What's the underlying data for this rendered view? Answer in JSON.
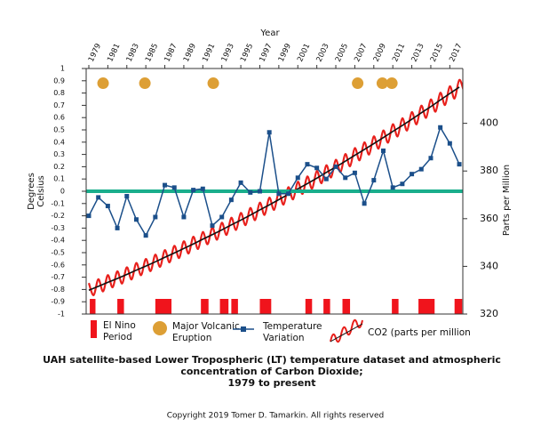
{
  "chart_data": {
    "type": "line",
    "title": [
      "UAH satellite-based Lower Tropospheric (LT) temperature dataset and atmospheric",
      "concentration of Carbon Dioxide;",
      "1979 to present"
    ],
    "xlabel": "Year",
    "ylabel": "Degrees Celsius",
    "y2label": "Parts per Million",
    "copyright": "Copyright 2019 Tomer D. Tamarkin.  All rights reserved",
    "xlim": [
      1978.72,
      2018.37
    ],
    "xticks": [
      1979,
      1981,
      1983,
      1985,
      1987,
      1989,
      1991,
      1993,
      1995,
      1997,
      1999,
      2001,
      2003,
      2005,
      2007,
      2009,
      2011,
      2013,
      2015,
      2017
    ],
    "ylim": [
      -1,
      1
    ],
    "yticks": [
      -1,
      -0.9,
      -0.8,
      -0.7,
      -0.6,
      -0.5,
      -0.4,
      -0.3,
      -0.2,
      -0.1,
      0,
      0.1,
      0.2,
      0.3,
      0.4,
      0.5,
      0.6,
      0.7,
      0.8,
      0.9,
      1
    ],
    "y2lim": [
      320,
      423
    ],
    "y2ticks": [
      320,
      340,
      360,
      380,
      400
    ],
    "reference_line": {
      "value": 0,
      "color": "#1aae8c"
    },
    "series": [
      {
        "name": "Temperature Variation",
        "color": "#1b4f8a",
        "x": [
          1979,
          1980,
          1981,
          1982,
          1983,
          1984,
          1985,
          1986,
          1987,
          1988,
          1989,
          1990,
          1991,
          1992,
          1993,
          1994,
          1995,
          1996,
          1997,
          1998,
          1999,
          2000,
          2001,
          2002,
          2003,
          2004,
          2005,
          2006,
          2007,
          2008,
          2009,
          2010,
          2011,
          2012,
          2013,
          2014,
          2015,
          2016,
          2017,
          2018
        ],
        "values": [
          -0.2,
          -0.05,
          -0.12,
          -0.3,
          -0.04,
          -0.23,
          -0.36,
          -0.21,
          0.05,
          0.03,
          -0.21,
          0.01,
          0.02,
          -0.28,
          -0.21,
          -0.07,
          0.07,
          -0.01,
          0.0,
          0.48,
          -0.02,
          -0.02,
          0.11,
          0.22,
          0.19,
          0.1,
          0.2,
          0.11,
          0.15,
          -0.1,
          0.09,
          0.33,
          0.03,
          0.06,
          0.14,
          0.18,
          0.27,
          0.52,
          0.39,
          0.22
        ]
      },
      {
        "name": "CO2 (parts per million",
        "color": "#111111",
        "axis": "y2",
        "x": [
          1979,
          1980,
          1981,
          1982,
          1983,
          1984,
          1985,
          1986,
          1987,
          1988,
          1989,
          1990,
          1991,
          1992,
          1993,
          1994,
          1995,
          1996,
          1997,
          1998,
          1999,
          2000,
          2001,
          2002,
          2003,
          2004,
          2005,
          2006,
          2007,
          2008,
          2009,
          2010,
          2011,
          2012,
          2013,
          2014,
          2015,
          2016,
          2017,
          2018
        ],
        "values": [
          330.0,
          331.6,
          333.3,
          334.9,
          336.6,
          338.4,
          340.1,
          341.9,
          343.8,
          345.6,
          347.5,
          349.4,
          351.4,
          353.3,
          355.3,
          357.4,
          359.4,
          361.5,
          363.7,
          365.8,
          368.0,
          370.2,
          372.5,
          374.7,
          377.0,
          379.4,
          381.7,
          384.1,
          386.6,
          389.0,
          391.5,
          394.0,
          396.6,
          399.1,
          401.7,
          404.4,
          407.0,
          409.8,
          412.5,
          415.2
        ],
        "seasonal": {
          "color": "#e8201c",
          "x": [
            1979,
            1979.5,
            1980,
            1980.5,
            1981,
            1981.5,
            1982,
            1982.5,
            1983,
            1983.5,
            1984,
            1984.5,
            1985,
            1985.5,
            1986,
            1986.5,
            1987,
            1987.5,
            1988,
            1988.5,
            1989,
            1989.5,
            1990,
            1990.5,
            1991,
            1991.5,
            1992,
            1992.5,
            1993,
            1993.5,
            1994,
            1994.5,
            1995,
            1995.5,
            1996,
            1996.5,
            1997,
            1997.5,
            1998,
            1998.5,
            1999,
            1999.5,
            2000,
            2000.5,
            2001,
            2001.5,
            2002,
            2002.5,
            2003,
            2003.5,
            2004,
            2004.5,
            2005,
            2005.5,
            2006,
            2006.5,
            2007,
            2007.5,
            2008,
            2008.5,
            2009,
            2009.5,
            2010,
            2010.5,
            2011,
            2011.5,
            2012,
            2012.5,
            2013,
            2013.5,
            2014,
            2014.5,
            2015,
            2015.5,
            2016,
            2016.5,
            2017,
            2017.5,
            2018,
            2018.5
          ],
          "values": [
            333.0,
            327.9,
            334.6,
            329.5,
            336.3,
            331.2,
            337.9,
            332.8,
            339.6,
            334.5,
            341.4,
            336.3,
            343.1,
            338.0,
            344.9,
            339.8,
            346.8,
            341.7,
            348.6,
            343.5,
            350.5,
            345.4,
            352.4,
            347.3,
            354.4,
            349.3,
            356.3,
            351.2,
            358.3,
            353.2,
            360.4,
            355.3,
            362.4,
            357.3,
            364.5,
            359.4,
            366.7,
            361.6,
            368.8,
            363.7,
            371.0,
            365.9,
            373.2,
            368.1,
            375.5,
            370.4,
            377.7,
            372.6,
            380.0,
            374.9,
            382.4,
            377.3,
            384.7,
            379.6,
            387.1,
            382.0,
            389.6,
            384.5,
            392.0,
            386.9,
            394.5,
            389.4,
            397.0,
            391.9,
            399.6,
            394.5,
            402.1,
            397.0,
            404.7,
            399.6,
            407.4,
            402.3,
            410.0,
            404.9,
            412.8,
            407.7,
            415.5,
            410.4,
            418.2,
            413.1
          ]
        }
      }
    ],
    "volcanoes": {
      "name": "Major Volcanic Eruption",
      "color": "#dd9f35",
      "x": [
        1980.5,
        1984.9,
        1992.1,
        2007.3,
        2009.9,
        2010.9
      ],
      "values": [
        0.88,
        0.88,
        0.88,
        0.88,
        0.88,
        0.88
      ]
    },
    "el_nino": {
      "name": "El Nino Period",
      "color": "#f0141c",
      "periods": [
        [
          1979.1,
          1979.7
        ],
        [
          1982.0,
          1982.7
        ],
        [
          1986.0,
          1987.7
        ],
        [
          1990.8,
          1991.6
        ],
        [
          1992.8,
          1993.7
        ],
        [
          1994.0,
          1994.7
        ],
        [
          1997.0,
          1998.2
        ],
        [
          2001.8,
          2002.5
        ],
        [
          2003.7,
          2004.4
        ],
        [
          2005.7,
          2006.5
        ],
        [
          2010.9,
          2011.6
        ],
        [
          2013.7,
          2015.4
        ],
        [
          2017.5,
          2018.3
        ]
      ]
    }
  }
}
